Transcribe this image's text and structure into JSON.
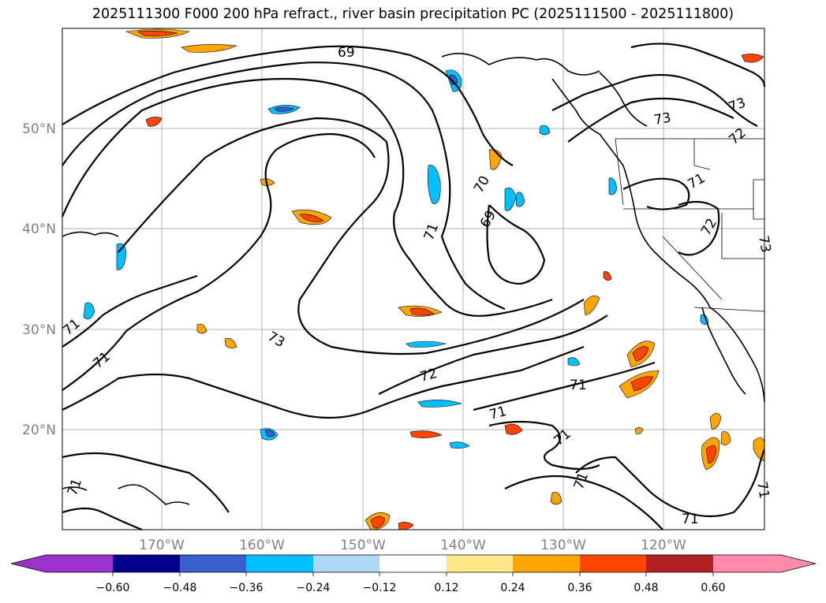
{
  "title": "2025111300 F000 200 hPa refract., river basin precipitation PC (2025111500 - 2025111800)",
  "map": {
    "lat_labels": [
      "50°N",
      "40°N",
      "30°N",
      "20°N"
    ],
    "lon_labels": [
      "170°W",
      "160°W",
      "150°W",
      "140°W",
      "130°W",
      "120°W"
    ],
    "contour_labels": [
      "69",
      "70",
      "69",
      "71",
      "73",
      "72",
      "71",
      "71",
      "71",
      "71",
      "73",
      "73",
      "72",
      "71",
      "72",
      "71",
      "71",
      "71",
      "71",
      "71",
      "73"
    ]
  },
  "colorbar": {
    "ticks": [
      "−0.60",
      "−0.48",
      "−0.36",
      "−0.24",
      "−0.12",
      "0.12",
      "0.24",
      "0.36",
      "0.48",
      "0.60"
    ],
    "colors": {
      "under": "#9933cc",
      "bins": [
        "#00008b",
        "#3a5fcd",
        "#00bfff",
        "#add8f7",
        "#ffffff",
        "#ffe88a",
        "#ffa500",
        "#ff4500",
        "#b22222",
        "#ff8aac"
      ]
    }
  }
}
